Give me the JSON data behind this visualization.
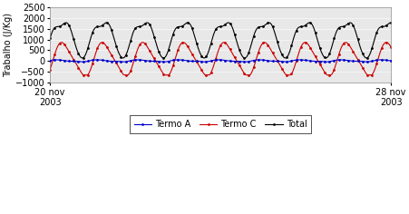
{
  "ylabel": "Trabalho (J/Kg)",
  "ylim": [
    -1000,
    2500
  ],
  "yticks": [
    -1000,
    -500,
    0,
    500,
    1000,
    1500,
    2000,
    2500
  ],
  "x_start_label": "20 nov\n2003",
  "x_end_label": "28 nov\n2003",
  "n_points": 289,
  "days": 8,
  "color_a": "#0000CC",
  "color_c": "#CC0000",
  "color_total": "#000000",
  "legend_labels": [
    "Termo A",
    "Termo C",
    "Total"
  ],
  "marker_size": 2.0,
  "linewidth": 0.8,
  "bg_color": "#d8d8d8"
}
